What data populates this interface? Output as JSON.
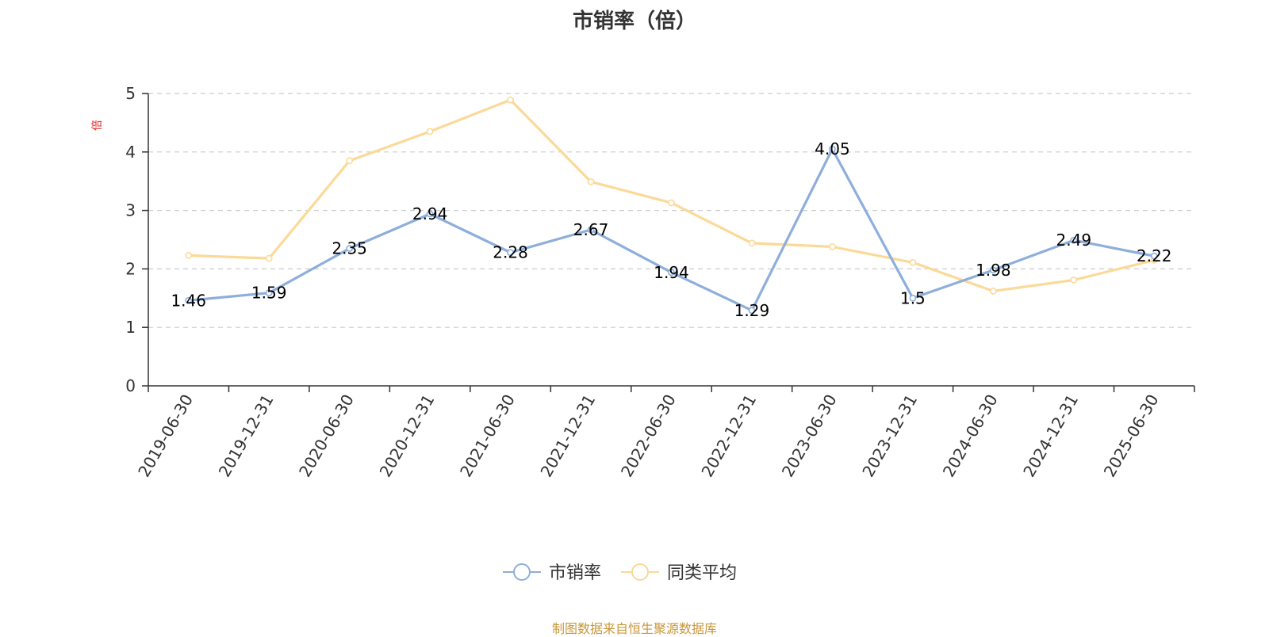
{
  "title": "市销率（倍）",
  "source": "制图数据来自恒生聚源数据库",
  "chart_data": {
    "type": "line",
    "title": "市销率（倍）",
    "ylabel": "倍",
    "xlabel": "",
    "ylim": [
      0,
      5
    ],
    "yticks": [
      0,
      1,
      2,
      3,
      4,
      5
    ],
    "grid": true,
    "legend_position": "bottom-center",
    "categories": [
      "2019-06-30",
      "2019-12-31",
      "2020-06-30",
      "2020-12-31",
      "2021-06-30",
      "2021-12-31",
      "2022-06-30",
      "2022-12-31",
      "2023-06-30",
      "2023-12-31",
      "2024-06-30",
      "2024-12-31",
      "2025-06-30"
    ],
    "series": [
      {
        "name": "市销率",
        "color": "#8eaedb",
        "values": [
          1.46,
          1.59,
          2.35,
          2.94,
          2.28,
          2.67,
          1.94,
          1.29,
          4.05,
          1.5,
          1.98,
          2.49,
          2.22
        ],
        "labels": [
          "1.46",
          "1.59",
          "2.35",
          "2.94",
          "2.28",
          "2.67",
          "1.94",
          "1.29",
          "4.05",
          "1.5",
          "1.98",
          "2.49",
          "2.22"
        ]
      },
      {
        "name": "同类平均",
        "color": "#fbd998",
        "values": [
          2.23,
          2.18,
          3.85,
          4.35,
          4.89,
          3.49,
          3.13,
          2.44,
          2.38,
          2.11,
          1.62,
          1.81,
          2.15
        ]
      }
    ]
  }
}
